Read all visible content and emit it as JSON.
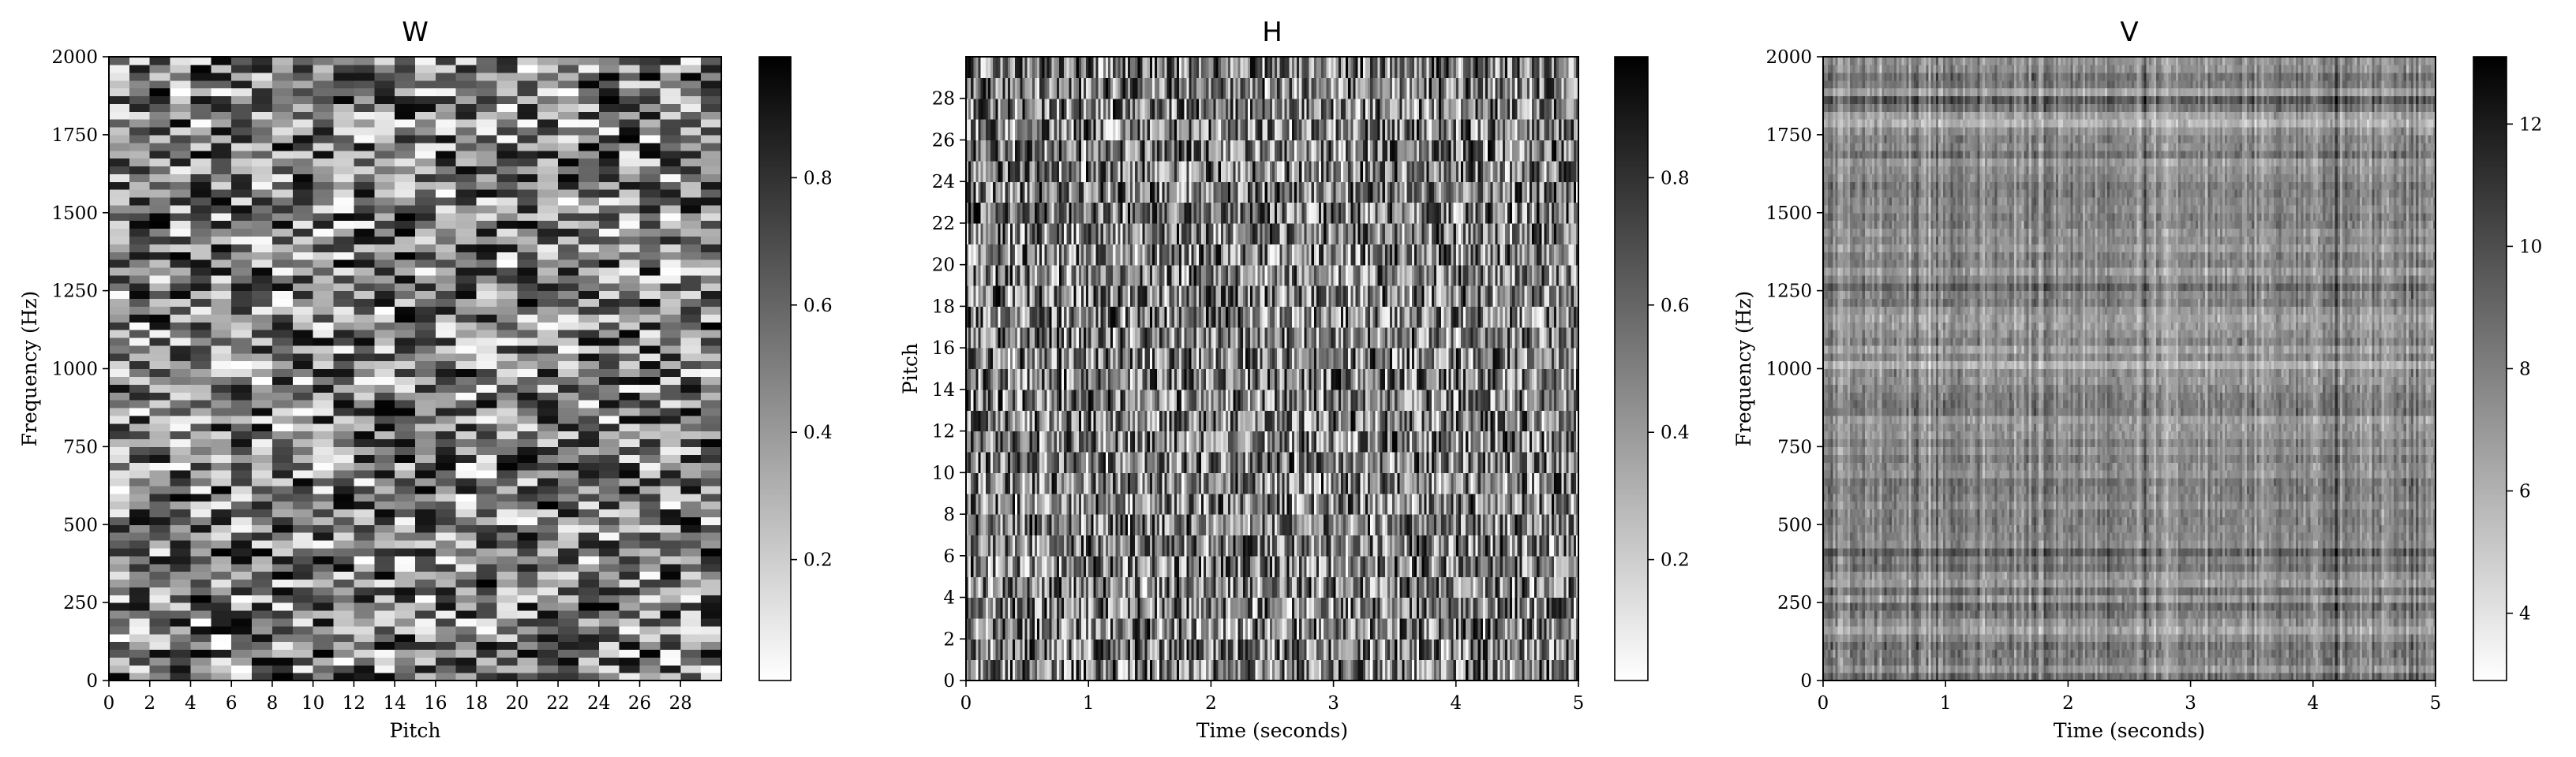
{
  "chart_data": [
    {
      "type": "heatmap",
      "title": "W",
      "xlabel": "Pitch",
      "ylabel": "Frequency (Hz)",
      "colormap": "gray_r",
      "x_ticks": [
        0,
        2,
        4,
        6,
        8,
        10,
        12,
        14,
        16,
        18,
        20,
        22,
        24,
        26,
        28
      ],
      "x_range": [
        0,
        30
      ],
      "y_ticks": [
        0,
        250,
        500,
        750,
        1000,
        1250,
        1500,
        1750,
        2000
      ],
      "y_range": [
        0,
        2000
      ],
      "grid_columns": 30,
      "grid_rows": 80,
      "value_range": [
        0,
        1
      ],
      "colorbar_ticks": [
        "0.2",
        "0.4",
        "0.6",
        "0.8"
      ],
      "colorbar_tick_values": [
        0.2,
        0.4,
        0.6,
        0.8
      ],
      "colorbar_range": [
        0.01,
        0.99
      ],
      "pattern": "uniform random values, blocky cells"
    },
    {
      "type": "heatmap",
      "title": "H",
      "xlabel": "Time (seconds)",
      "ylabel": "Pitch",
      "colormap": "gray_r",
      "x_ticks": [
        0,
        1,
        2,
        3,
        4,
        5
      ],
      "x_range": [
        0,
        5
      ],
      "y_ticks": [
        0,
        2,
        4,
        6,
        8,
        10,
        12,
        14,
        16,
        18,
        20,
        22,
        24,
        26,
        28
      ],
      "y_range": [
        0,
        30
      ],
      "grid_columns": 250,
      "grid_rows": 30,
      "value_range": [
        0,
        1
      ],
      "colorbar_ticks": [
        "0.2",
        "0.4",
        "0.6",
        "0.8"
      ],
      "colorbar_tick_values": [
        0.2,
        0.4,
        0.6,
        0.8
      ],
      "colorbar_range": [
        0.01,
        0.99
      ],
      "pattern": "uniform random values, thin vertical stripes"
    },
    {
      "type": "heatmap",
      "title": "V",
      "xlabel": "Time (seconds)",
      "ylabel": "Frequency (Hz)",
      "colormap": "gray_r",
      "x_ticks": [
        0,
        1,
        2,
        3,
        4,
        5
      ],
      "x_range": [
        0,
        5
      ],
      "y_ticks": [
        0,
        250,
        500,
        750,
        1000,
        1250,
        1500,
        1750,
        2000
      ],
      "y_range": [
        0,
        2000
      ],
      "grid_columns": 250,
      "grid_rows": 80,
      "value_range": [
        2.9,
        13.1
      ],
      "colorbar_ticks": [
        "4",
        "6",
        "8",
        "10",
        "12"
      ],
      "colorbar_tick_values": [
        4,
        6,
        8,
        10,
        12
      ],
      "colorbar_range": [
        2.9,
        13.1
      ],
      "pattern": "product W × H, smooth mid-gray texture with horizontal banding"
    }
  ]
}
